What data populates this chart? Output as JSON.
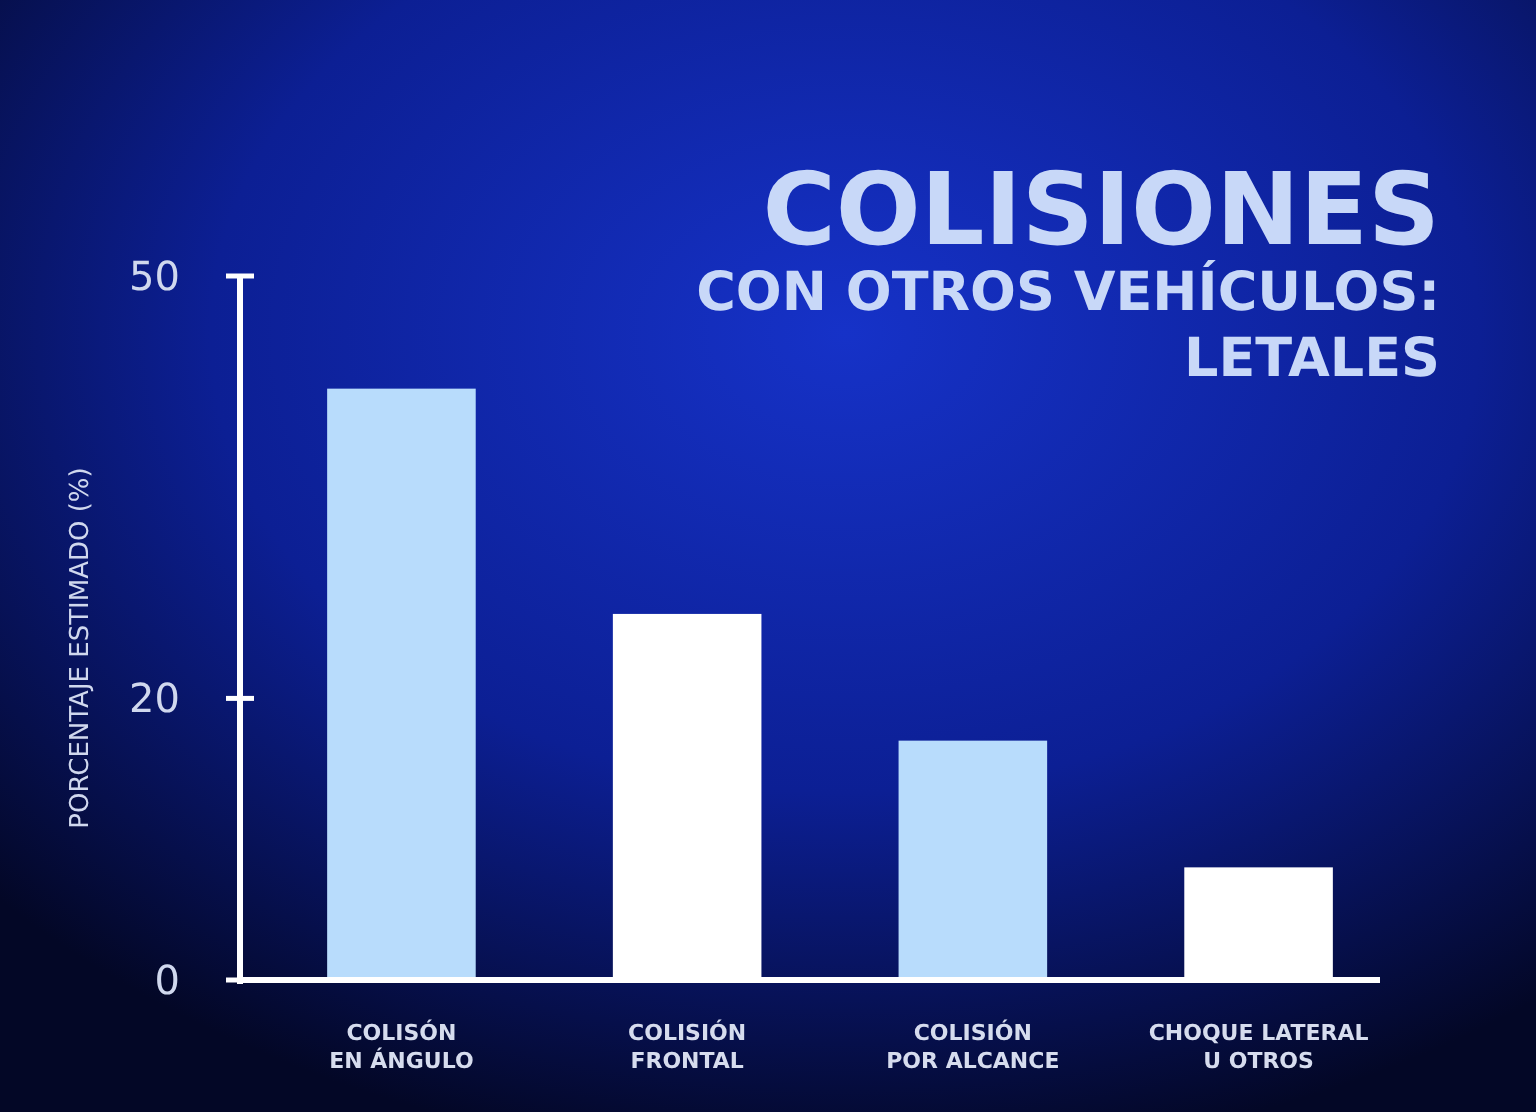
{
  "chart_data": {
    "type": "bar",
    "title": "COLISIONES",
    "subtitle": "CON OTROS VEHÍCULOS:\nLETALES",
    "ylabel": "PORCENTAJE ESTIMADO (%)",
    "categories": [
      "COLISÓN\nEN ÁNGULO",
      "COLISIÓN\nFRONTAL",
      "COLISIÓN\nPOR ALCANCE",
      "CHOQUE LATERAL\nU OTROS"
    ],
    "values": [
      42,
      26,
      17,
      8
    ],
    "colors": [
      "#b8dcfc",
      "#ffffff",
      "#b8dcfc",
      "#ffffff"
    ],
    "ylim": [
      0,
      50
    ],
    "yticks": [
      0,
      20,
      50
    ],
    "grid": false
  }
}
